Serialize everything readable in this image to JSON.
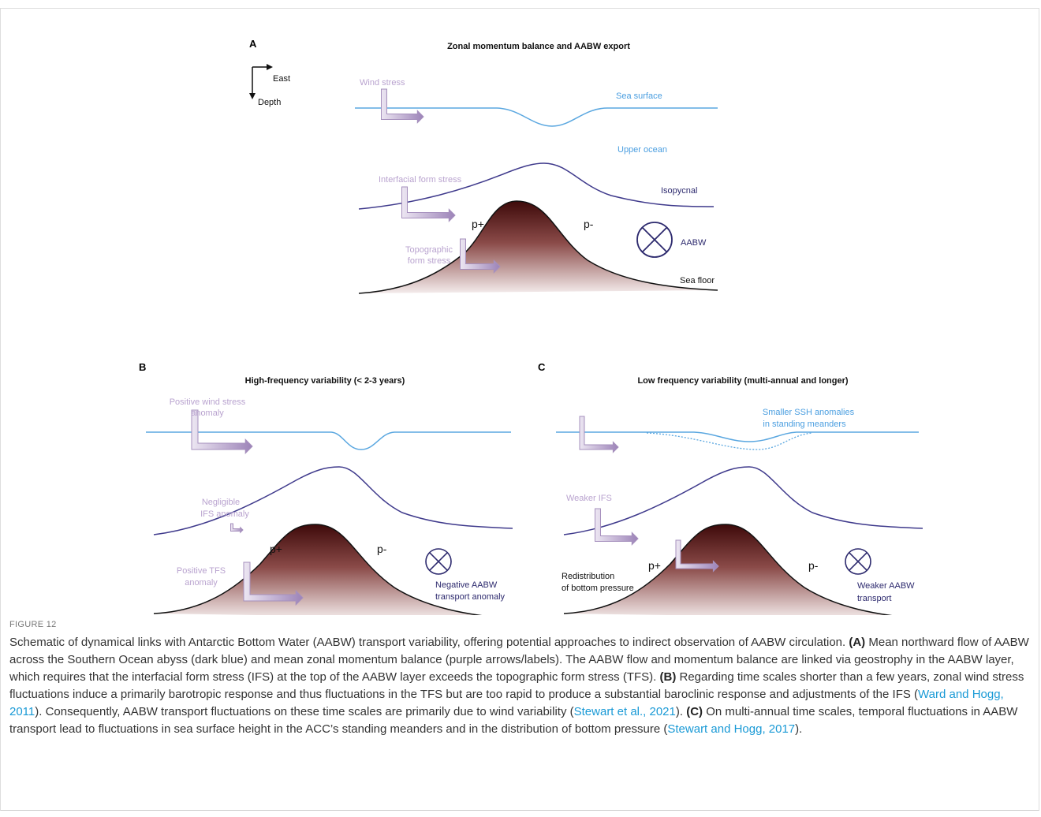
{
  "figure": {
    "panel_a": {
      "label": "A",
      "title": "Zonal momentum balance and AABW export",
      "east": "East",
      "depth": "Depth",
      "wind_stress": "Wind stress",
      "sea_surface": "Sea surface",
      "upper_ocean": "Upper ocean",
      "interfacial_form_stress": "Interfacial form stress",
      "isopycnal": "Isopycnal",
      "p_plus": "p+",
      "p_minus": "p-",
      "topographic_form_stress": [
        "Topographic",
        "form stress"
      ],
      "aabw": "AABW",
      "sea_floor": "Sea floor"
    },
    "panel_b": {
      "label": "B",
      "title": "High-frequency variability (< 2-3 years)",
      "wind": [
        "Positive wind stress",
        "anomaly"
      ],
      "ifs": [
        "Negligible",
        "IFS anomaly"
      ],
      "p_plus": "p+",
      "p_minus": "p-",
      "tfs": [
        "Positive TFS",
        "anomaly"
      ],
      "aabw": [
        "Negative AABW",
        "transport anomaly"
      ]
    },
    "panel_c": {
      "label": "C",
      "title": "Low frequency variability (multi-annual and longer)",
      "ssh": [
        "Smaller SSH anomalies",
        "in standing meanders"
      ],
      "ifs": "Weaker IFS",
      "pressure": [
        "Redistribution",
        "of bottom pressure"
      ],
      "p_plus": "p+",
      "p_minus": "p-",
      "aabw": [
        "Weaker AABW",
        "transport"
      ]
    },
    "caption": {
      "label": "FIGURE 12",
      "parts": [
        "Schematic of dynamical links with Antarctic Bottom Water (AABW) transport variability, offering potential approaches to indirect observation of AABW circulation. ",
        "(A)",
        " Mean northward flow of AABW across the Southern Ocean abyss (dark blue) and mean zonal momentum balance (purple arrows/labels). The AABW flow and momentum balance are linked via geostrophy in the AABW layer, which requires that the interfacial form stress (IFS) at the top of the AABW layer exceeds the topographic form stress (TFS). ",
        "(B)",
        " Regarding time scales shorter than a few years, zonal wind stress fluctuations induce a primarily barotropic response and thus fluctuations in the TFS but are too rapid to produce a substantial baroclinic response and adjustments of the IFS (",
        "Ward and Hogg, 2011",
        "). Consequently, AABW transport fluctuations on these time scales are primarily due to wind variability (",
        "Stewart et al., 2021",
        "). ",
        "(C)",
        " On multi-annual time scales, temporal fluctuations in AABW transport lead to fluctuations in sea surface height in the ACC’s standing meanders and in the distribution of bottom pressure (",
        "Stewart and Hogg, 2017",
        ")."
      ]
    }
  }
}
